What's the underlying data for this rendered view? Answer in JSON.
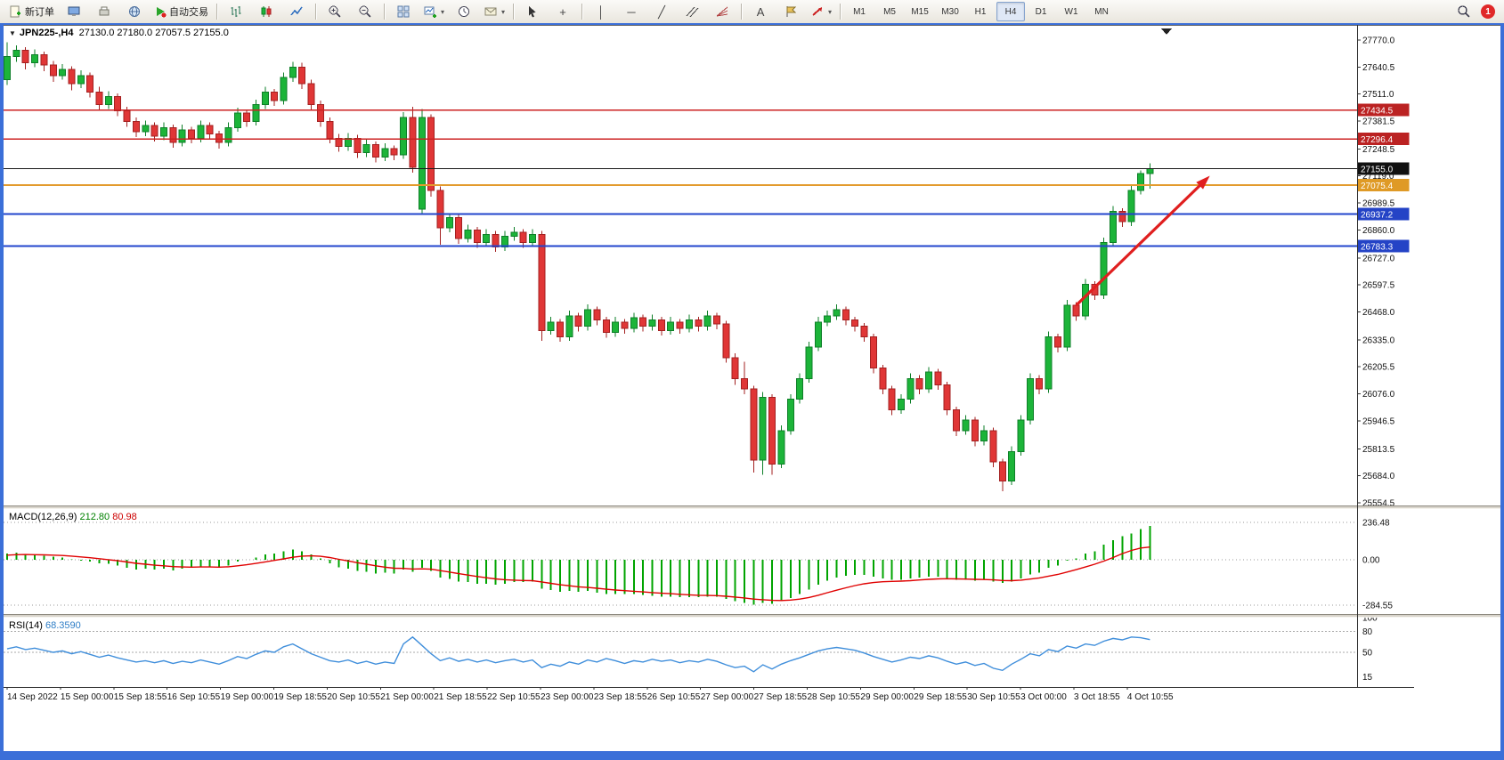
{
  "toolbar": {
    "new_order": "新订单",
    "auto_trading": "自动交易",
    "timeframes": [
      "M1",
      "M5",
      "M15",
      "M30",
      "H1",
      "H4",
      "D1",
      "W1",
      "MN"
    ],
    "active_timeframe": "H4",
    "notification_count": "1",
    "glyphs": {
      "collapse": "▼",
      "dropdown": "▾",
      "crosshair": "+",
      "vline": "│",
      "hline": "─",
      "trendline": "╱",
      "text_tool": "A"
    }
  },
  "chart": {
    "title": "JPN225-,H4",
    "ohlc_text": "27130.0 27180.0 27057.5 27155.0"
  },
  "chart_data": {
    "type": "candlestick",
    "symbol": "JPN225-",
    "timeframe": "H4",
    "last_bar": {
      "open": 27130.0,
      "high": 27180.0,
      "low": 27057.5,
      "close": 27155.0
    },
    "price_axis_ticks": [
      "27770.0",
      "27640.5",
      "27511.0",
      "27381.5",
      "27248.5",
      "27119.0",
      "26989.5",
      "26860.0",
      "26727.0",
      "26597.5",
      "26468.0",
      "26335.0",
      "26205.5",
      "26076.0",
      "25946.5",
      "25813.5",
      "25684.0",
      "25554.5"
    ],
    "time_labels": [
      "14 Sep 2022",
      "15 Sep 00:00",
      "15 Sep 18:55",
      "16 Sep 10:55",
      "19 Sep 00:00",
      "19 Sep 18:55",
      "20 Sep 10:55",
      "21 Sep 00:00",
      "21 Sep 18:55",
      "22 Sep 10:55",
      "23 Sep 00:00",
      "23 Sep 18:55",
      "26 Sep 10:55",
      "27 Sep 00:00",
      "27 Sep 18:55",
      "28 Sep 10:55",
      "29 Sep 00:00",
      "29 Sep 18:55",
      "30 Sep 10:55",
      "3 Oct 00:00",
      "3 Oct 18:55",
      "4 Oct 10:55"
    ],
    "levels": [
      {
        "price": 27434.5,
        "label": "27434.5",
        "line_color": "#cc2222",
        "badge_color": "#bb2222",
        "width": 1.6
      },
      {
        "price": 27296.4,
        "label": "27296.4",
        "line_color": "#cc2222",
        "badge_color": "#bb2222",
        "width": 1.6
      },
      {
        "price": 27155.0,
        "label": "27155.0",
        "line_color": "#1a1a1a",
        "badge_color": "#111111",
        "width": 1
      },
      {
        "price": 27075.4,
        "label": "27075.4",
        "line_color": "#e39b2d",
        "badge_color": "#df9a26",
        "width": 2.4
      },
      {
        "price": 26937.2,
        "label": "26937.2",
        "line_color": "#2244cc",
        "badge_color": "#2443c6",
        "width": 2
      },
      {
        "price": 26783.3,
        "label": "26783.3",
        "line_color": "#2244cc",
        "badge_color": "#2443c6",
        "width": 2
      }
    ],
    "annotation_arrow": {
      "from_bar": 116,
      "from_price": 26500,
      "to_bar": 130.5,
      "to_price": 27120
    },
    "colors": {
      "bull": "#1cb439",
      "bear": "#e03636",
      "bull_border": "#0e7f28",
      "bear_border": "#a32020",
      "macd_hist": "#00a400",
      "macd_signal": "#e00000",
      "rsi_line": "#3f8edb",
      "arrow": "#e01f1f"
    },
    "candles": [
      [
        27580,
        27760,
        27555,
        27690
      ],
      [
        27690,
        27745,
        27665,
        27720
      ],
      [
        27720,
        27735,
        27630,
        27660
      ],
      [
        27660,
        27725,
        27640,
        27700
      ],
      [
        27700,
        27715,
        27620,
        27650
      ],
      [
        27650,
        27670,
        27570,
        27600
      ],
      [
        27600,
        27655,
        27580,
        27630
      ],
      [
        27630,
        27645,
        27530,
        27560
      ],
      [
        27560,
        27625,
        27540,
        27600
      ],
      [
        27600,
        27615,
        27495,
        27520
      ],
      [
        27520,
        27545,
        27435,
        27460
      ],
      [
        27460,
        27525,
        27440,
        27500
      ],
      [
        27500,
        27515,
        27405,
        27430
      ],
      [
        27430,
        27450,
        27355,
        27380
      ],
      [
        27380,
        27400,
        27305,
        27330
      ],
      [
        27330,
        27385,
        27310,
        27360
      ],
      [
        27360,
        27375,
        27285,
        27310
      ],
      [
        27310,
        27375,
        27290,
        27350
      ],
      [
        27350,
        27365,
        27255,
        27280
      ],
      [
        27280,
        27365,
        27260,
        27340
      ],
      [
        27340,
        27355,
        27275,
        27300
      ],
      [
        27300,
        27385,
        27280,
        27360
      ],
      [
        27360,
        27375,
        27295,
        27320
      ],
      [
        27320,
        27335,
        27250,
        27280
      ],
      [
        27280,
        27375,
        27260,
        27350
      ],
      [
        27350,
        27445,
        27330,
        27420
      ],
      [
        27420,
        27435,
        27355,
        27380
      ],
      [
        27380,
        27485,
        27360,
        27460
      ],
      [
        27460,
        27545,
        27440,
        27520
      ],
      [
        27520,
        27535,
        27455,
        27480
      ],
      [
        27480,
        27615,
        27460,
        27590
      ],
      [
        27590,
        27665,
        27570,
        27640
      ],
      [
        27640,
        27660,
        27535,
        27560
      ],
      [
        27560,
        27580,
        27435,
        27460
      ],
      [
        27460,
        27480,
        27355,
        27380
      ],
      [
        27380,
        27400,
        27275,
        27300
      ],
      [
        27300,
        27320,
        27235,
        27260
      ],
      [
        27260,
        27325,
        27240,
        27300
      ],
      [
        27300,
        27315,
        27205,
        27230
      ],
      [
        27230,
        27295,
        27210,
        27270
      ],
      [
        27270,
        27285,
        27185,
        27210
      ],
      [
        27210,
        27275,
        27190,
        27250
      ],
      [
        27250,
        27265,
        27195,
        27220
      ],
      [
        27220,
        27425,
        27200,
        27400
      ],
      [
        27400,
        27450,
        27135,
        27160
      ],
      [
        26960,
        27440,
        26940,
        27400
      ],
      [
        27400,
        27415,
        27020,
        27050
      ],
      [
        27050,
        27070,
        26790,
        26870
      ],
      [
        26870,
        26935,
        26850,
        26920
      ],
      [
        26920,
        26935,
        26795,
        26820
      ],
      [
        26820,
        26885,
        26800,
        26860
      ],
      [
        26860,
        26875,
        26775,
        26800
      ],
      [
        26800,
        26865,
        26780,
        26840
      ],
      [
        26840,
        26855,
        26755,
        26780
      ],
      [
        26780,
        26855,
        26760,
        26830
      ],
      [
        26830,
        26875,
        26810,
        26850
      ],
      [
        26850,
        26865,
        26775,
        26800
      ],
      [
        26800,
        26865,
        26780,
        26840
      ],
      [
        26840,
        26855,
        26330,
        26380
      ],
      [
        26380,
        26445,
        26360,
        26420
      ],
      [
        26420,
        26435,
        26325,
        26350
      ],
      [
        26350,
        26475,
        26330,
        26450
      ],
      [
        26450,
        26465,
        26375,
        26400
      ],
      [
        26400,
        26505,
        26380,
        26480
      ],
      [
        26480,
        26495,
        26405,
        26430
      ],
      [
        26430,
        26445,
        26345,
        26370
      ],
      [
        26370,
        26445,
        26350,
        26420
      ],
      [
        26420,
        26435,
        26365,
        26390
      ],
      [
        26390,
        26465,
        26370,
        26440
      ],
      [
        26440,
        26455,
        26375,
        26400
      ],
      [
        26400,
        26455,
        26380,
        26430
      ],
      [
        26430,
        26445,
        26355,
        26380
      ],
      [
        26380,
        26445,
        26360,
        26420
      ],
      [
        26420,
        26435,
        26365,
        26390
      ],
      [
        26390,
        26455,
        26370,
        26430
      ],
      [
        26430,
        26445,
        26375,
        26400
      ],
      [
        26400,
        26475,
        26380,
        26450
      ],
      [
        26450,
        26465,
        26385,
        26410
      ],
      [
        26410,
        26425,
        26225,
        26250
      ],
      [
        26250,
        26270,
        26120,
        26150
      ],
      [
        26150,
        26230,
        26075,
        26100
      ],
      [
        26100,
        26115,
        25700,
        25760
      ],
      [
        25760,
        26085,
        25690,
        26060
      ],
      [
        26060,
        26075,
        25690,
        25740
      ],
      [
        25740,
        25925,
        25720,
        25900
      ],
      [
        25900,
        26075,
        25880,
        26050
      ],
      [
        26050,
        26175,
        26030,
        26150
      ],
      [
        26150,
        26325,
        26130,
        26300
      ],
      [
        26300,
        26445,
        26280,
        26420
      ],
      [
        26420,
        26475,
        26400,
        26450
      ],
      [
        26450,
        26505,
        26430,
        26480
      ],
      [
        26480,
        26495,
        26405,
        26430
      ],
      [
        26430,
        26445,
        26375,
        26400
      ],
      [
        26400,
        26415,
        26325,
        26350
      ],
      [
        26350,
        26365,
        26175,
        26200
      ],
      [
        26200,
        26215,
        26075,
        26100
      ],
      [
        26100,
        26115,
        25975,
        26000
      ],
      [
        26000,
        26075,
        25980,
        26050
      ],
      [
        26050,
        26175,
        26030,
        26150
      ],
      [
        26150,
        26165,
        26075,
        26100
      ],
      [
        26100,
        26205,
        26080,
        26180
      ],
      [
        26180,
        26195,
        26095,
        26120
      ],
      [
        26120,
        26135,
        25975,
        26000
      ],
      [
        26000,
        26015,
        25875,
        25900
      ],
      [
        25900,
        25975,
        25880,
        25950
      ],
      [
        25950,
        25965,
        25825,
        25850
      ],
      [
        25850,
        25925,
        25830,
        25900
      ],
      [
        25900,
        25915,
        25725,
        25750
      ],
      [
        25750,
        25765,
        25610,
        25660
      ],
      [
        25660,
        25825,
        25640,
        25800
      ],
      [
        25800,
        25975,
        25780,
        25950
      ],
      [
        25950,
        26175,
        25930,
        26150
      ],
      [
        26150,
        26165,
        26075,
        26100
      ],
      [
        26100,
        26375,
        26080,
        26350
      ],
      [
        26350,
        26365,
        26275,
        26300
      ],
      [
        26300,
        26525,
        26280,
        26500
      ],
      [
        26500,
        26515,
        26425,
        26450
      ],
      [
        26450,
        26625,
        26430,
        26600
      ],
      [
        26600,
        26615,
        26525,
        26550
      ],
      [
        26550,
        26825,
        26530,
        26800
      ],
      [
        26800,
        26975,
        26780,
        26950
      ],
      [
        26950,
        26965,
        26875,
        26900
      ],
      [
        26900,
        27075,
        26880,
        27050
      ],
      [
        27050,
        27145,
        27030,
        27130
      ],
      [
        27130,
        27180,
        27057.5,
        27155
      ]
    ],
    "indicators": {
      "macd": {
        "label": "MACD(12,26,9)",
        "value_main": "212.80",
        "value_signal": "80.98",
        "scale_labels": [
          "236.48",
          "0.00",
          "-284.55"
        ],
        "scale_values": [
          236.48,
          0,
          -284.55
        ],
        "histogram": [
          40,
          45,
          35,
          30,
          25,
          20,
          15,
          5,
          -5,
          -10,
          -20,
          -25,
          -35,
          -50,
          -60,
          -55,
          -60,
          -55,
          -65,
          -55,
          -50,
          -40,
          -45,
          -50,
          -35,
          -10,
          0,
          15,
          35,
          40,
          55,
          65,
          55,
          35,
          10,
          -20,
          -45,
          -55,
          -70,
          -75,
          -85,
          -80,
          -85,
          -60,
          -75,
          -50,
          -70,
          -110,
          -120,
          -135,
          -140,
          -150,
          -150,
          -155,
          -150,
          -140,
          -140,
          -135,
          -180,
          -190,
          -200,
          -195,
          -200,
          -195,
          -205,
          -215,
          -215,
          -215,
          -215,
          -220,
          -225,
          -230,
          -230,
          -235,
          -235,
          -235,
          -230,
          -230,
          -245,
          -260,
          -270,
          -280,
          -270,
          -275,
          -260,
          -240,
          -215,
          -185,
          -155,
          -130,
          -110,
          -100,
          -95,
          -95,
          -105,
          -115,
          -125,
          -125,
          -115,
          -110,
          -105,
          -105,
          -115,
          -125,
          -125,
          -130,
          -125,
          -135,
          -145,
          -135,
          -115,
          -90,
          -80,
          -50,
          -35,
          -5,
          10,
          40,
          55,
          95,
          125,
          150,
          165,
          195,
          212.8
        ],
        "signal": [
          30,
          33,
          34,
          33,
          32,
          30,
          28,
          24,
          19,
          14,
          8,
          2,
          -5,
          -13,
          -21,
          -27,
          -33,
          -37,
          -42,
          -44,
          -45,
          -44,
          -44,
          -45,
          -43,
          -37,
          -30,
          -22,
          -12,
          -3,
          7,
          17,
          24,
          26,
          23,
          15,
          4,
          -6,
          -17,
          -27,
          -37,
          -45,
          -52,
          -53,
          -57,
          -56,
          -58,
          -67,
          -76,
          -86,
          -95,
          -104,
          -112,
          -119,
          -124,
          -127,
          -129,
          -130,
          -138,
          -147,
          -156,
          -162,
          -169,
          -173,
          -178,
          -184,
          -189,
          -193,
          -197,
          -201,
          -205,
          -209,
          -212,
          -216,
          -219,
          -222,
          -223,
          -224,
          -228,
          -233,
          -239,
          -246,
          -250,
          -254,
          -255,
          -252,
          -246,
          -236,
          -222,
          -206,
          -190,
          -175,
          -161,
          -150,
          -142,
          -137,
          -135,
          -133,
          -130,
          -126,
          -122,
          -119,
          -118,
          -119,
          -120,
          -122,
          -123,
          -125,
          -129,
          -130,
          -127,
          -120,
          -113,
          -102,
          -91,
          -76,
          -61,
          -44,
          -27,
          -7,
          15,
          40,
          60,
          75,
          80.98
        ]
      },
      "rsi": {
        "label": "RSI(14)",
        "value": "68.3590",
        "levels": [
          100,
          80,
          50,
          15
        ],
        "line": [
          55,
          58,
          54,
          56,
          53,
          50,
          52,
          48,
          51,
          47,
          43,
          46,
          42,
          39,
          36,
          38,
          35,
          38,
          34,
          37,
          35,
          39,
          36,
          33,
          38,
          44,
          41,
          47,
          52,
          50,
          58,
          62,
          55,
          48,
          43,
          38,
          36,
          39,
          34,
          37,
          33,
          36,
          34,
          62,
          72,
          60,
          48,
          38,
          42,
          37,
          40,
          36,
          39,
          35,
          38,
          40,
          36,
          39,
          28,
          33,
          30,
          36,
          33,
          39,
          36,
          41,
          38,
          34,
          38,
          36,
          40,
          37,
          39,
          35,
          38,
          36,
          40,
          37,
          32,
          28,
          30,
          22,
          32,
          26,
          33,
          38,
          42,
          47,
          52,
          55,
          57,
          55,
          53,
          49,
          44,
          40,
          36,
          39,
          43,
          41,
          45,
          42,
          37,
          33,
          36,
          31,
          34,
          27,
          24,
          33,
          40,
          48,
          45,
          54,
          51,
          59,
          56,
          62,
          60,
          66,
          70,
          68,
          72,
          71,
          68.36
        ]
      }
    }
  }
}
